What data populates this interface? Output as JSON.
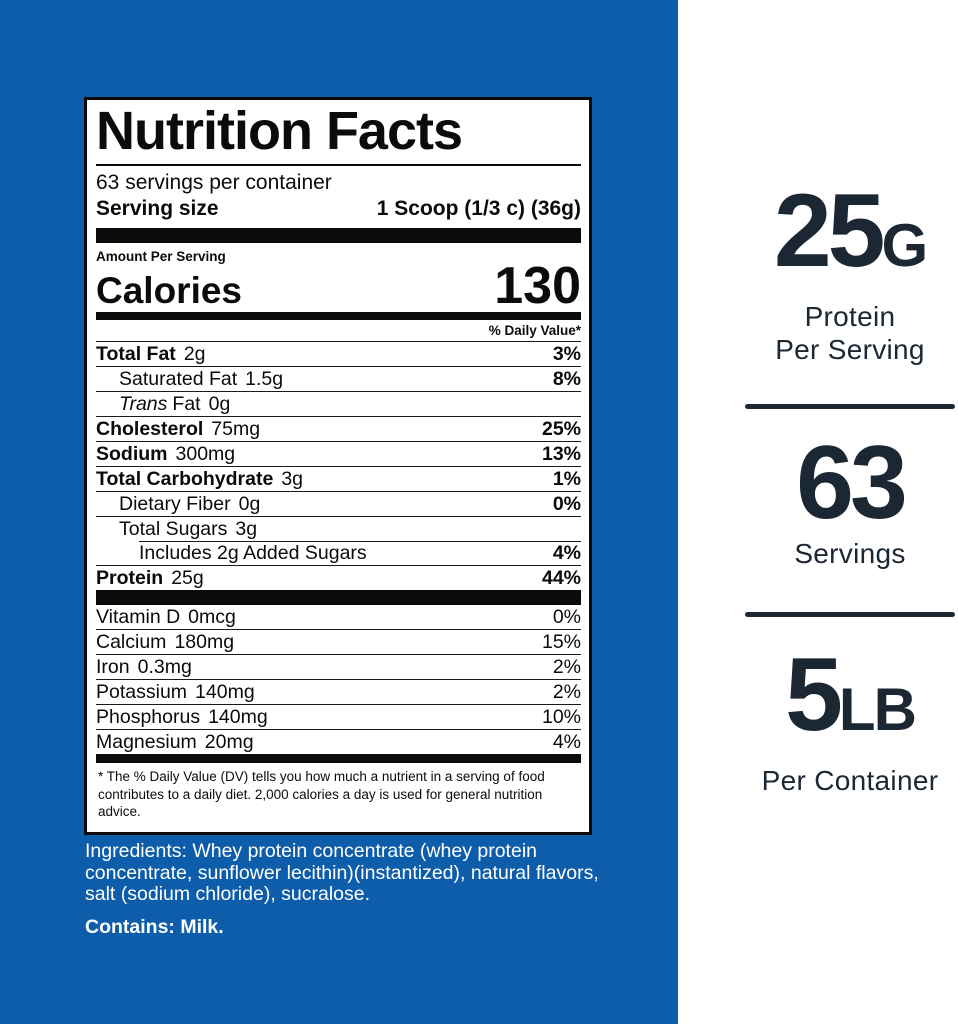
{
  "colors": {
    "panel_blue": "#0d5dab",
    "stat_navy": "#1c2734",
    "label_black": "#0b0b0b"
  },
  "label": {
    "title": "Nutrition Facts",
    "servings_per_container": "63 servings per container",
    "serving_size_label": "Serving size",
    "serving_size_value": "1 Scoop (1/3 c) (36g)",
    "amount_per_serving": "Amount Per Serving",
    "calories_label": "Calories",
    "calories_value": "130",
    "daily_value_header": "% Daily Value*",
    "nutrient_rows": [
      {
        "prefix": "",
        "name": "Total Fat",
        "amount": "2g",
        "dv": "3%",
        "cls": "r-bold"
      },
      {
        "prefix": "",
        "name": "Saturated Fat",
        "amount": "1.5g",
        "dv": "8%",
        "cls": "ind1"
      },
      {
        "prefix": "Trans",
        "name": "Fat",
        "amount": "0g",
        "dv": "",
        "cls": "ind1"
      },
      {
        "prefix": "",
        "name": "Cholesterol",
        "amount": "75mg",
        "dv": "25%",
        "cls": "r-bold"
      },
      {
        "prefix": "",
        "name": "Sodium",
        "amount": "300mg",
        "dv": "13%",
        "cls": "r-bold"
      },
      {
        "prefix": "",
        "name": "Total Carbohydrate",
        "amount": "3g",
        "dv": "1%",
        "cls": "r-bold"
      },
      {
        "prefix": "",
        "name": "Dietary Fiber",
        "amount": "0g",
        "dv": "0%",
        "cls": "ind1"
      },
      {
        "prefix": "",
        "name": "Total Sugars",
        "amount": "3g",
        "dv": "",
        "cls": "ind1"
      },
      {
        "prefix": "",
        "name": "Includes 2g Added Sugars",
        "amount": "",
        "dv": "4%",
        "cls": "ind2 line-indent"
      },
      {
        "prefix": "",
        "name": "Protein",
        "amount": "25g",
        "dv": "44%",
        "cls": "r-bold"
      }
    ],
    "vitamin_rows": [
      {
        "name": "Vitamin D",
        "amount": "0mcg",
        "dv": "0%"
      },
      {
        "name": "Calcium",
        "amount": "180mg",
        "dv": "15%"
      },
      {
        "name": "Iron",
        "amount": "0.3mg",
        "dv": "2%"
      },
      {
        "name": "Potassium",
        "amount": "140mg",
        "dv": "2%"
      },
      {
        "name": "Phosphorus",
        "amount": "140mg",
        "dv": "10%"
      },
      {
        "name": "Magnesium",
        "amount": "20mg",
        "dv": "4%"
      }
    ],
    "footnote": "* The % Daily Value (DV) tells you how much a nutrient in a serving of food contributes to a daily diet. 2,000 calories a day is used for general nutrition advice."
  },
  "ingredients_text": "Ingredients: Whey protein concentrate (whey protein concentrate, sunflower lecithin)(instantized), natural flavors, salt (sodium chloride), sucralose.",
  "contains_text": "Contains: Milk.",
  "right_panel": {
    "stats": [
      {
        "value": "25",
        "unit": "G",
        "line1": "Protein",
        "line2": "Per Serving"
      },
      {
        "value": "63",
        "unit": "",
        "line1": "Servings",
        "line2": ""
      },
      {
        "value": "5",
        "unit": "LB",
        "line1": "Per Container",
        "line2": ""
      }
    ]
  }
}
